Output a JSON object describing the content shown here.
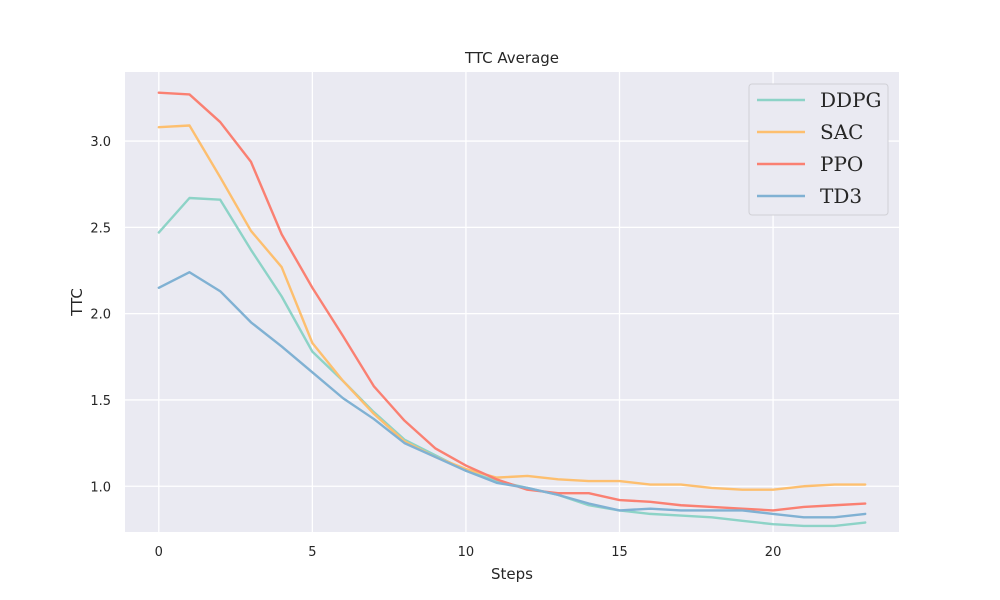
{
  "chart_data": {
    "type": "line",
    "title": "TTC Average",
    "xlabel": "Steps",
    "ylabel": "TTC",
    "xlim": [
      -1.1,
      24.1
    ],
    "ylim": [
      0.735,
      3.4
    ],
    "xticks": [
      "0",
      "5",
      "10",
      "15",
      "20"
    ],
    "yticks": [
      "1.0",
      "1.5",
      "2.0",
      "2.5",
      "3.0"
    ],
    "grid": true,
    "legend_position": "top-right",
    "x": [
      0,
      1,
      2,
      3,
      4,
      5,
      6,
      7,
      8,
      9,
      10,
      11,
      12,
      13,
      14,
      15,
      16,
      17,
      18,
      19,
      20,
      21,
      22,
      23
    ],
    "series": [
      {
        "name": "DDPG",
        "color": "#8dd3c7",
        "values": [
          2.47,
          2.67,
          2.66,
          2.37,
          2.1,
          1.78,
          1.61,
          1.43,
          1.27,
          1.18,
          1.09,
          1.03,
          0.99,
          0.95,
          0.89,
          0.86,
          0.84,
          0.83,
          0.82,
          0.8,
          0.78,
          0.77,
          0.77,
          0.79
        ]
      },
      {
        "name": "SAC",
        "color": "#fdbf6f",
        "values": [
          3.08,
          3.09,
          2.79,
          2.48,
          2.27,
          1.83,
          1.61,
          1.42,
          1.26,
          1.17,
          1.1,
          1.05,
          1.06,
          1.04,
          1.03,
          1.03,
          1.01,
          1.01,
          0.99,
          0.98,
          0.98,
          1.0,
          1.01,
          1.01
        ]
      },
      {
        "name": "PPO",
        "color": "#fa8072",
        "values": [
          3.28,
          3.27,
          3.11,
          2.88,
          2.46,
          2.15,
          1.87,
          1.58,
          1.38,
          1.22,
          1.12,
          1.04,
          0.98,
          0.96,
          0.96,
          0.92,
          0.91,
          0.89,
          0.88,
          0.87,
          0.86,
          0.88,
          0.89,
          0.9
        ]
      },
      {
        "name": "TD3",
        "color": "#80b1d3",
        "values": [
          2.15,
          2.24,
          2.13,
          1.95,
          1.81,
          1.66,
          1.51,
          1.39,
          1.25,
          1.17,
          1.09,
          1.02,
          0.99,
          0.95,
          0.9,
          0.86,
          0.87,
          0.86,
          0.86,
          0.86,
          0.84,
          0.82,
          0.82,
          0.84
        ]
      }
    ]
  }
}
